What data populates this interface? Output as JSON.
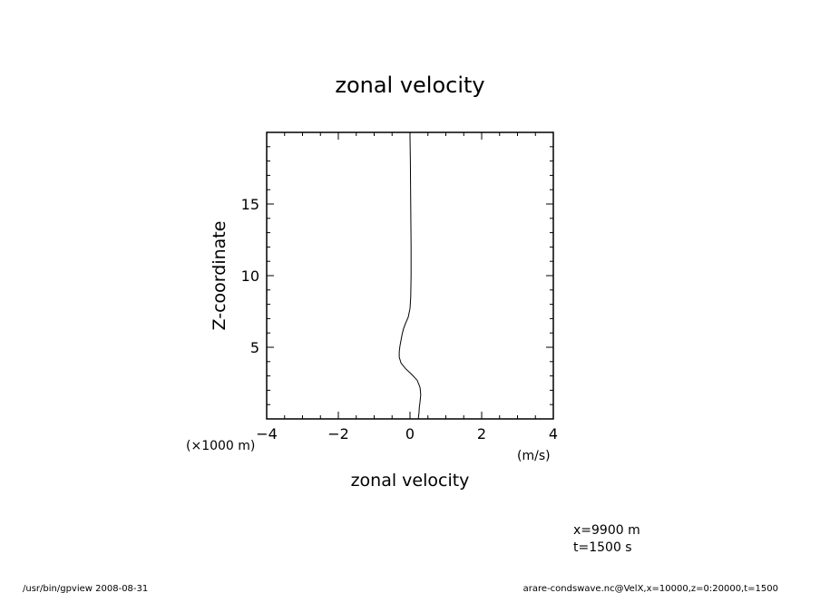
{
  "chart_data": {
    "type": "line",
    "title": "zonal velocity",
    "xlabel": "zonal velocity",
    "ylabel": "Z-coordinate",
    "x_unit": "(m/s)",
    "y_unit": "(×1000 m)",
    "xlim": [
      -4,
      4
    ],
    "ylim": [
      0,
      20
    ],
    "x_ticks": [
      "−4",
      "−2",
      "0",
      "2",
      "4"
    ],
    "y_ticks": [
      "5",
      "10",
      "15"
    ],
    "grid": false,
    "series": [
      {
        "x": [
          0.23,
          0.25,
          0.26,
          0.28,
          0.3,
          0.28,
          0.2,
          0.05,
          -0.12,
          -0.25,
          -0.3,
          -0.3,
          -0.28,
          -0.25,
          -0.22,
          -0.18,
          -0.12,
          -0.05,
          0.0,
          0.02,
          0.03,
          0.03,
          0.02,
          0.01,
          0.0
        ],
        "y": [
          0,
          0.4,
          0.8,
          1.2,
          1.7,
          2.2,
          2.7,
          3.1,
          3.5,
          3.9,
          4.3,
          4.7,
          5.1,
          5.5,
          5.9,
          6.3,
          6.7,
          7.1,
          7.7,
          8.5,
          10.0,
          12.0,
          15.0,
          18.0,
          19.7
        ]
      }
    ]
  },
  "info": {
    "x_value": "x=9900  m",
    "t_value": "t=1500  s"
  },
  "footer": {
    "left": "/usr/bin/gpview   2008-08-31",
    "right": "arare-condswave.nc@VelX,x=10000,z=0:20000,t=1500"
  }
}
